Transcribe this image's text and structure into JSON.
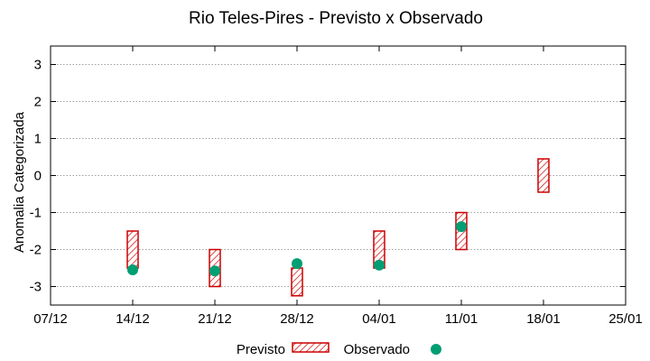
{
  "chart_data": {
    "type": "scatter",
    "title": "Rio Teles-Pires - Previsto x Observado",
    "xlabel": "",
    "ylabel": "Anomalia Categorizada",
    "x_ticks": [
      "07/12",
      "14/12",
      "21/12",
      "28/12",
      "04/01",
      "11/01",
      "18/01",
      "25/01"
    ],
    "ylim": [
      -3.5,
      3.5
    ],
    "y_ticks": [
      -3,
      -2,
      -1,
      0,
      1,
      2,
      3
    ],
    "grid": "horizontal dotted",
    "legend_position": "bottom",
    "series": [
      {
        "name": "Previsto",
        "kind": "range-box",
        "color": "#cc0000",
        "points": [
          {
            "x": "14/12",
            "low": -2.5,
            "high": -1.5
          },
          {
            "x": "21/12",
            "low": -3.0,
            "high": -2.0
          },
          {
            "x": "28/12",
            "low": -3.25,
            "high": -2.5
          },
          {
            "x": "04/01",
            "low": -2.5,
            "high": -1.5
          },
          {
            "x": "11/01",
            "low": -2.0,
            "high": -1.0
          },
          {
            "x": "18/01",
            "low": -0.45,
            "high": 0.45
          }
        ]
      },
      {
        "name": "Observado",
        "kind": "point",
        "color": "#009e73",
        "points": [
          {
            "x": "14/12",
            "y": -2.55
          },
          {
            "x": "21/12",
            "y": -2.58
          },
          {
            "x": "28/12",
            "y": -2.38
          },
          {
            "x": "04/01",
            "y": -2.42
          },
          {
            "x": "11/01",
            "y": -1.38
          }
        ]
      }
    ]
  }
}
